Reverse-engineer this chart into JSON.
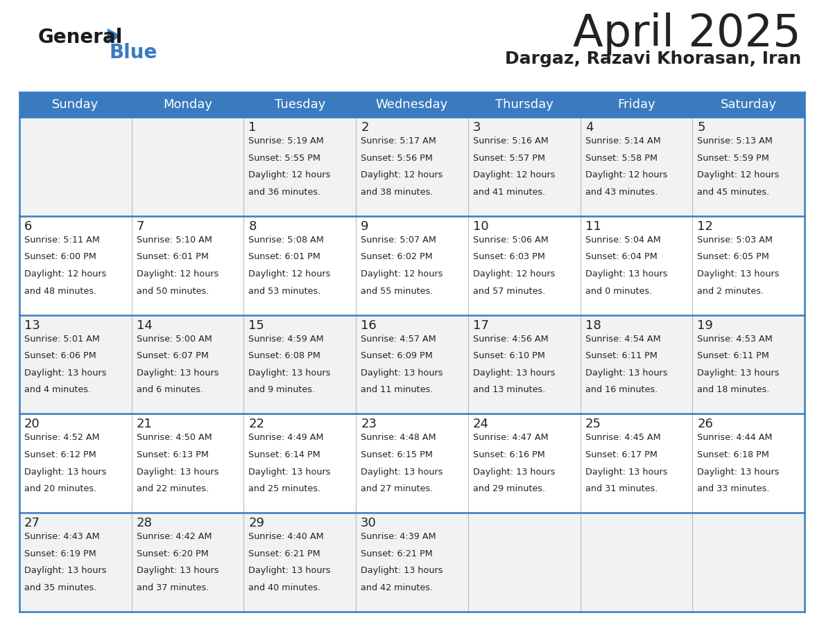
{
  "title": "April 2025",
  "subtitle": "Dargaz, Razavi Khorasan, Iran",
  "header_color": "#3a7abf",
  "header_text_color": "#ffffff",
  "day_names": [
    "Sunday",
    "Monday",
    "Tuesday",
    "Wednesday",
    "Thursday",
    "Friday",
    "Saturday"
  ],
  "row_bg_odd": "#f2f2f2",
  "row_bg_even": "#ffffff",
  "separator_color": "#3a7abf",
  "cell_line_color": "#cccccc",
  "text_color": "#222222",
  "days": [
    {
      "day": 1,
      "col": 2,
      "row": 0,
      "sunrise": "5:19 AM",
      "sunset": "5:55 PM",
      "daylight_h": "12 hours",
      "daylight_m": "and 36 minutes."
    },
    {
      "day": 2,
      "col": 3,
      "row": 0,
      "sunrise": "5:17 AM",
      "sunset": "5:56 PM",
      "daylight_h": "12 hours",
      "daylight_m": "and 38 minutes."
    },
    {
      "day": 3,
      "col": 4,
      "row": 0,
      "sunrise": "5:16 AM",
      "sunset": "5:57 PM",
      "daylight_h": "12 hours",
      "daylight_m": "and 41 minutes."
    },
    {
      "day": 4,
      "col": 5,
      "row": 0,
      "sunrise": "5:14 AM",
      "sunset": "5:58 PM",
      "daylight_h": "12 hours",
      "daylight_m": "and 43 minutes."
    },
    {
      "day": 5,
      "col": 6,
      "row": 0,
      "sunrise": "5:13 AM",
      "sunset": "5:59 PM",
      "daylight_h": "12 hours",
      "daylight_m": "and 45 minutes."
    },
    {
      "day": 6,
      "col": 0,
      "row": 1,
      "sunrise": "5:11 AM",
      "sunset": "6:00 PM",
      "daylight_h": "12 hours",
      "daylight_m": "and 48 minutes."
    },
    {
      "day": 7,
      "col": 1,
      "row": 1,
      "sunrise": "5:10 AM",
      "sunset": "6:01 PM",
      "daylight_h": "12 hours",
      "daylight_m": "and 50 minutes."
    },
    {
      "day": 8,
      "col": 2,
      "row": 1,
      "sunrise": "5:08 AM",
      "sunset": "6:01 PM",
      "daylight_h": "12 hours",
      "daylight_m": "and 53 minutes."
    },
    {
      "day": 9,
      "col": 3,
      "row": 1,
      "sunrise": "5:07 AM",
      "sunset": "6:02 PM",
      "daylight_h": "12 hours",
      "daylight_m": "and 55 minutes."
    },
    {
      "day": 10,
      "col": 4,
      "row": 1,
      "sunrise": "5:06 AM",
      "sunset": "6:03 PM",
      "daylight_h": "12 hours",
      "daylight_m": "and 57 minutes."
    },
    {
      "day": 11,
      "col": 5,
      "row": 1,
      "sunrise": "5:04 AM",
      "sunset": "6:04 PM",
      "daylight_h": "13 hours",
      "daylight_m": "and 0 minutes."
    },
    {
      "day": 12,
      "col": 6,
      "row": 1,
      "sunrise": "5:03 AM",
      "sunset": "6:05 PM",
      "daylight_h": "13 hours",
      "daylight_m": "and 2 minutes."
    },
    {
      "day": 13,
      "col": 0,
      "row": 2,
      "sunrise": "5:01 AM",
      "sunset": "6:06 PM",
      "daylight_h": "13 hours",
      "daylight_m": "and 4 minutes."
    },
    {
      "day": 14,
      "col": 1,
      "row": 2,
      "sunrise": "5:00 AM",
      "sunset": "6:07 PM",
      "daylight_h": "13 hours",
      "daylight_m": "and 6 minutes."
    },
    {
      "day": 15,
      "col": 2,
      "row": 2,
      "sunrise": "4:59 AM",
      "sunset": "6:08 PM",
      "daylight_h": "13 hours",
      "daylight_m": "and 9 minutes."
    },
    {
      "day": 16,
      "col": 3,
      "row": 2,
      "sunrise": "4:57 AM",
      "sunset": "6:09 PM",
      "daylight_h": "13 hours",
      "daylight_m": "and 11 minutes."
    },
    {
      "day": 17,
      "col": 4,
      "row": 2,
      "sunrise": "4:56 AM",
      "sunset": "6:10 PM",
      "daylight_h": "13 hours",
      "daylight_m": "and 13 minutes."
    },
    {
      "day": 18,
      "col": 5,
      "row": 2,
      "sunrise": "4:54 AM",
      "sunset": "6:11 PM",
      "daylight_h": "13 hours",
      "daylight_m": "and 16 minutes."
    },
    {
      "day": 19,
      "col": 6,
      "row": 2,
      "sunrise": "4:53 AM",
      "sunset": "6:11 PM",
      "daylight_h": "13 hours",
      "daylight_m": "and 18 minutes."
    },
    {
      "day": 20,
      "col": 0,
      "row": 3,
      "sunrise": "4:52 AM",
      "sunset": "6:12 PM",
      "daylight_h": "13 hours",
      "daylight_m": "and 20 minutes."
    },
    {
      "day": 21,
      "col": 1,
      "row": 3,
      "sunrise": "4:50 AM",
      "sunset": "6:13 PM",
      "daylight_h": "13 hours",
      "daylight_m": "and 22 minutes."
    },
    {
      "day": 22,
      "col": 2,
      "row": 3,
      "sunrise": "4:49 AM",
      "sunset": "6:14 PM",
      "daylight_h": "13 hours",
      "daylight_m": "and 25 minutes."
    },
    {
      "day": 23,
      "col": 3,
      "row": 3,
      "sunrise": "4:48 AM",
      "sunset": "6:15 PM",
      "daylight_h": "13 hours",
      "daylight_m": "and 27 minutes."
    },
    {
      "day": 24,
      "col": 4,
      "row": 3,
      "sunrise": "4:47 AM",
      "sunset": "6:16 PM",
      "daylight_h": "13 hours",
      "daylight_m": "and 29 minutes."
    },
    {
      "day": 25,
      "col": 5,
      "row": 3,
      "sunrise": "4:45 AM",
      "sunset": "6:17 PM",
      "daylight_h": "13 hours",
      "daylight_m": "and 31 minutes."
    },
    {
      "day": 26,
      "col": 6,
      "row": 3,
      "sunrise": "4:44 AM",
      "sunset": "6:18 PM",
      "daylight_h": "13 hours",
      "daylight_m": "and 33 minutes."
    },
    {
      "day": 27,
      "col": 0,
      "row": 4,
      "sunrise": "4:43 AM",
      "sunset": "6:19 PM",
      "daylight_h": "13 hours",
      "daylight_m": "and 35 minutes."
    },
    {
      "day": 28,
      "col": 1,
      "row": 4,
      "sunrise": "4:42 AM",
      "sunset": "6:20 PM",
      "daylight_h": "13 hours",
      "daylight_m": "and 37 minutes."
    },
    {
      "day": 29,
      "col": 2,
      "row": 4,
      "sunrise": "4:40 AM",
      "sunset": "6:21 PM",
      "daylight_h": "13 hours",
      "daylight_m": "and 40 minutes."
    },
    {
      "day": 30,
      "col": 3,
      "row": 4,
      "sunrise": "4:39 AM",
      "sunset": "6:21 PM",
      "daylight_h": "13 hours",
      "daylight_m": "and 42 minutes."
    }
  ],
  "logo_general_color": "#1a1a1a",
  "logo_blue_color": "#3a7abf",
  "figsize": [
    11.88,
    9.18
  ],
  "dpi": 100
}
